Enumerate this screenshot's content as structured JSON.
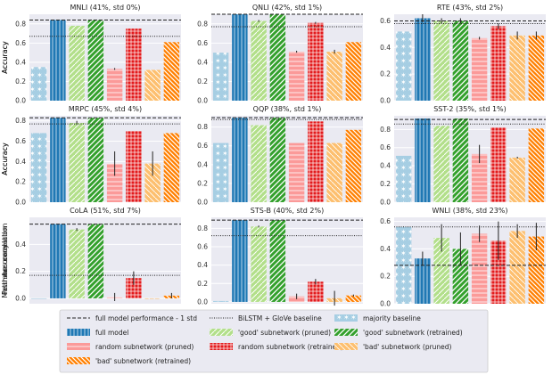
{
  "colors": {
    "panel_bg": "#eaeaf2",
    "majority": "#a6cee3",
    "full": "#1f78b4",
    "good": "#b2df8a",
    "good_dark": "#33a02c",
    "random": "#fb9a99",
    "random_dark": "#e31a1c",
    "bad": "#fdbf6f",
    "bad_dark": "#ff7f00"
  },
  "legend": {
    "items": [
      {
        "key": "full_minus_std",
        "label": "full model performance - 1 std"
      },
      {
        "key": "bilstm",
        "label": "BiLSTM + GloVe baseline"
      },
      {
        "key": "majority",
        "label": "majority baseline"
      },
      {
        "key": "full",
        "label": "full model"
      },
      {
        "key": "good_pruned",
        "label": "'good' subnetwork (pruned)"
      },
      {
        "key": "good_retrained",
        "label": "'good' subnetwork (retrained)"
      },
      {
        "key": "random_pruned",
        "label": "random subnetwork (pruned)"
      },
      {
        "key": "random_retrained",
        "label": "random subnetwork (retrained)"
      },
      {
        "key": "bad_pruned",
        "label": "'bad' subnetwork (pruned)"
      },
      {
        "key": "bad_retrained",
        "label": "'bad' subnetwork (retrained)"
      }
    ]
  },
  "chart_data": [
    {
      "type": "bar",
      "title": "MNLI (41%, std 0%)",
      "ylabel": "Accuracy",
      "ylim": [
        0,
        0.9
      ],
      "yticks": [
        "0.0",
        "0.2",
        "0.4",
        "0.6",
        "0.8"
      ],
      "ytick_values": [
        0,
        0.2,
        0.4,
        0.6,
        0.8
      ],
      "categories": [
        "majority",
        "full",
        "good_pruned",
        "good_retrained",
        "random_pruned",
        "random_retrained",
        "bad_pruned",
        "bad_retrained"
      ],
      "values": [
        0.35,
        0.84,
        0.78,
        0.84,
        0.33,
        0.75,
        0.32,
        0.61
      ],
      "errors": [
        0,
        0,
        0,
        0,
        0.01,
        0,
        0,
        0
      ],
      "full_minus_std": 0.84,
      "bilstm": 0.67
    },
    {
      "type": "bar",
      "title": "QNLI (42%, std 1%)",
      "ylabel": "Accuracy",
      "ylim": [
        0,
        0.9
      ],
      "yticks": [
        "0.0",
        "0.2",
        "0.4",
        "0.6",
        "0.8"
      ],
      "ytick_values": [
        0,
        0.2,
        0.4,
        0.6,
        0.8
      ],
      "categories": [
        "majority",
        "full",
        "good_pruned",
        "good_retrained",
        "random_pruned",
        "random_retrained",
        "bad_pruned",
        "bad_retrained"
      ],
      "values": [
        0.5,
        0.9,
        0.83,
        0.9,
        0.51,
        0.81,
        0.51,
        0.61
      ],
      "errors": [
        0,
        0,
        0.01,
        0,
        0.01,
        0.01,
        0.02,
        0
      ],
      "full_minus_std": 0.9,
      "bilstm": 0.77
    },
    {
      "type": "bar",
      "title": "RTE (43%, std 2%)",
      "ylabel": "Accuracy",
      "ylim": [
        0,
        0.65
      ],
      "yticks": [
        "0.0",
        "0.2",
        "0.4",
        "0.6"
      ],
      "ytick_values": [
        0,
        0.2,
        0.4,
        0.6
      ],
      "categories": [
        "majority",
        "full",
        "good_pruned",
        "good_retrained",
        "random_pruned",
        "random_retrained",
        "bad_pruned",
        "bad_retrained"
      ],
      "values": [
        0.52,
        0.62,
        0.6,
        0.6,
        0.47,
        0.56,
        0.49,
        0.49
      ],
      "errors": [
        0,
        0.03,
        0.02,
        0.02,
        0.01,
        0.02,
        0.03,
        0.03
      ],
      "full_minus_std": 0.6,
      "bilstm": 0.58
    },
    {
      "type": "bar",
      "title": "MRPC (45%, std 4%)",
      "ylabel": "Accuracy",
      "ylim": [
        0,
        0.85
      ],
      "yticks": [
        "0.0",
        "0.2",
        "0.4",
        "0.6",
        "0.8"
      ],
      "ytick_values": [
        0,
        0.2,
        0.4,
        0.6,
        0.8
      ],
      "categories": [
        "majority",
        "full",
        "good_pruned",
        "good_retrained",
        "random_pruned",
        "random_retrained",
        "bad_pruned",
        "bad_retrained"
      ],
      "values": [
        0.68,
        0.83,
        0.78,
        0.83,
        0.38,
        0.7,
        0.38,
        0.68
      ],
      "errors": [
        0,
        0,
        0.02,
        0,
        0.12,
        0,
        0.12,
        0
      ],
      "full_minus_std": 0.83,
      "bilstm": 0.77
    },
    {
      "type": "bar",
      "title": "QQP (38%, std 1%)",
      "ylabel": "Accuracy",
      "ylim": [
        0,
        0.92
      ],
      "yticks": [
        "0.0",
        "0.2",
        "0.4",
        "0.6",
        "0.8"
      ],
      "ytick_values": [
        0,
        0.2,
        0.4,
        0.6,
        0.8
      ],
      "categories": [
        "majority",
        "full",
        "good_pruned",
        "good_retrained",
        "random_pruned",
        "random_retrained",
        "bad_pruned",
        "bad_retrained"
      ],
      "values": [
        0.63,
        0.9,
        0.82,
        0.9,
        0.63,
        0.86,
        0.63,
        0.77
      ],
      "errors": [
        0,
        0,
        0,
        0,
        0,
        0,
        0,
        0
      ],
      "full_minus_std": 0.9,
      "bilstm": 0.88
    },
    {
      "type": "bar",
      "title": "SST-2 (35%, std 1%)",
      "ylabel": "Accuracy",
      "ylim": [
        0,
        0.95
      ],
      "yticks": [
        "0.0",
        "0.2",
        "0.4",
        "0.6",
        "0.8"
      ],
      "ytick_values": [
        0,
        0.2,
        0.4,
        0.6,
        0.8
      ],
      "categories": [
        "majority",
        "full",
        "good_pruned",
        "good_retrained",
        "random_pruned",
        "random_retrained",
        "bad_pruned",
        "bad_retrained"
      ],
      "values": [
        0.51,
        0.92,
        0.84,
        0.92,
        0.53,
        0.82,
        0.49,
        0.81
      ],
      "errors": [
        0,
        0,
        0,
        0,
        0.1,
        0,
        0.01,
        0
      ],
      "full_minus_std": 0.91,
      "bilstm": 0.86
    },
    {
      "type": "bar",
      "title": "CoLA (51%, std 7%)",
      "ylabel": "Matthews correlation",
      "ylim": [
        -0.04,
        0.6
      ],
      "yticks": [
        "0.0",
        "0.2",
        "0.4"
      ],
      "ytick_values": [
        0,
        0.2,
        0.4
      ],
      "categories": [
        "majority",
        "full",
        "good_pruned",
        "good_retrained",
        "random_pruned",
        "random_retrained",
        "bad_pruned",
        "bad_retrained"
      ],
      "values": [
        0,
        0.55,
        0.51,
        0.55,
        0.01,
        0.15,
        0,
        0.02
      ],
      "errors": [
        0,
        0,
        0.01,
        0,
        0.03,
        0.05,
        0,
        0.02
      ],
      "full_minus_std": 0.55,
      "bilstm": 0.17
    },
    {
      "type": "bar",
      "title": "STS-B (40%, std 2%)",
      "ylabel": "Pearson correlation",
      "ylim": [
        -0.02,
        0.92
      ],
      "yticks": [
        "0.0",
        "0.2",
        "0.4",
        "0.6",
        "0.8"
      ],
      "ytick_values": [
        0,
        0.2,
        0.4,
        0.6,
        0.8
      ],
      "categories": [
        "majority",
        "full",
        "good_pruned",
        "good_retrained",
        "random_pruned",
        "random_retrained",
        "bad_pruned",
        "bad_retrained"
      ],
      "values": [
        0.01,
        0.89,
        0.82,
        0.89,
        0.06,
        0.22,
        0.04,
        0.07
      ],
      "errors": [
        0,
        0,
        0.01,
        0,
        0.03,
        0.03,
        0.08,
        0.01
      ],
      "full_minus_std": 0.89,
      "bilstm": 0.72
    },
    {
      "type": "bar",
      "title": "WNLI (38%, std 23%)",
      "ylabel": "Accuracy",
      "ylim": [
        0,
        0.63
      ],
      "yticks": [
        "0.0",
        "0.2",
        "0.4",
        "0.6"
      ],
      "ytick_values": [
        0,
        0.2,
        0.4,
        0.6
      ],
      "categories": [
        "majority",
        "full",
        "good_pruned",
        "good_retrained",
        "random_pruned",
        "random_retrained",
        "bad_pruned",
        "bad_retrained"
      ],
      "values": [
        0.56,
        0.33,
        0.48,
        0.4,
        0.51,
        0.46,
        0.53,
        0.49
      ],
      "errors": [
        0,
        0.05,
        0.1,
        0.12,
        0.06,
        0.14,
        0.05,
        0.1
      ],
      "full_minus_std": 0.28,
      "bilstm": 0.56
    }
  ]
}
